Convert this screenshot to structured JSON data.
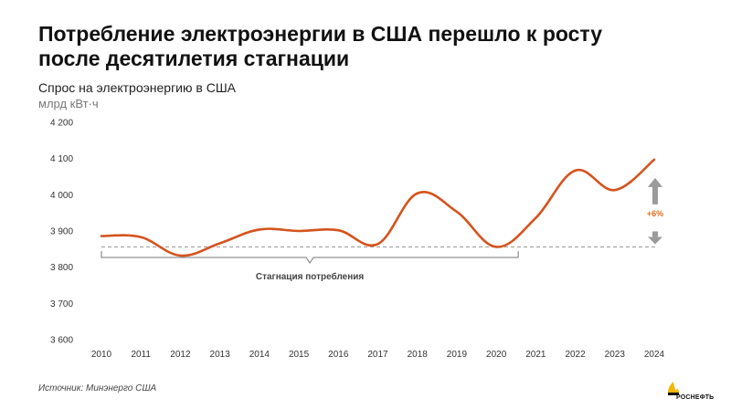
{
  "title": "Потребление электроэнергии в США перешло к росту после десятилетия стагнации",
  "subtitle": "Спрос на электроэнергию в США",
  "unit": "млрд кВт·ч",
  "source": "Источник: Минэнерго США",
  "logo_text": "РОСНЕФТЬ",
  "colors": {
    "line": "#d4531d",
    "accent": "#e36c1e",
    "arrow": "#9b9b9b",
    "ref": "#999999",
    "logo": "#f2b705"
  },
  "chart_data": {
    "type": "line",
    "categories": [
      "2010",
      "2011",
      "2012",
      "2013",
      "2014",
      "2015",
      "2016",
      "2017",
      "2018",
      "2019",
      "2020",
      "2021",
      "2022",
      "2023",
      "2024"
    ],
    "x": [
      2010,
      2011,
      2012,
      2013,
      2014,
      2015,
      2016,
      2017,
      2018,
      2019,
      2020,
      2021,
      2022,
      2023,
      2024
    ],
    "values": [
      3886,
      3883,
      3832,
      3866,
      3904,
      3900,
      3902,
      3864,
      4004,
      3953,
      3856,
      3936,
      4067,
      4013,
      4097
    ],
    "ylim": [
      3600,
      4200
    ],
    "yticks": [
      3600,
      3700,
      3800,
      3900,
      4000,
      4100,
      4200
    ],
    "ytick_labels": [
      "3 600",
      "3 700",
      "3 800",
      "3 900",
      "4 000",
      "4 100",
      "4 200"
    ],
    "reference_line": 3856,
    "grid": false,
    "annotations": {
      "stagnation_label": "Стагнация потребления",
      "stagnation_range": [
        2010,
        2020
      ],
      "growth_label": "+6%"
    }
  }
}
